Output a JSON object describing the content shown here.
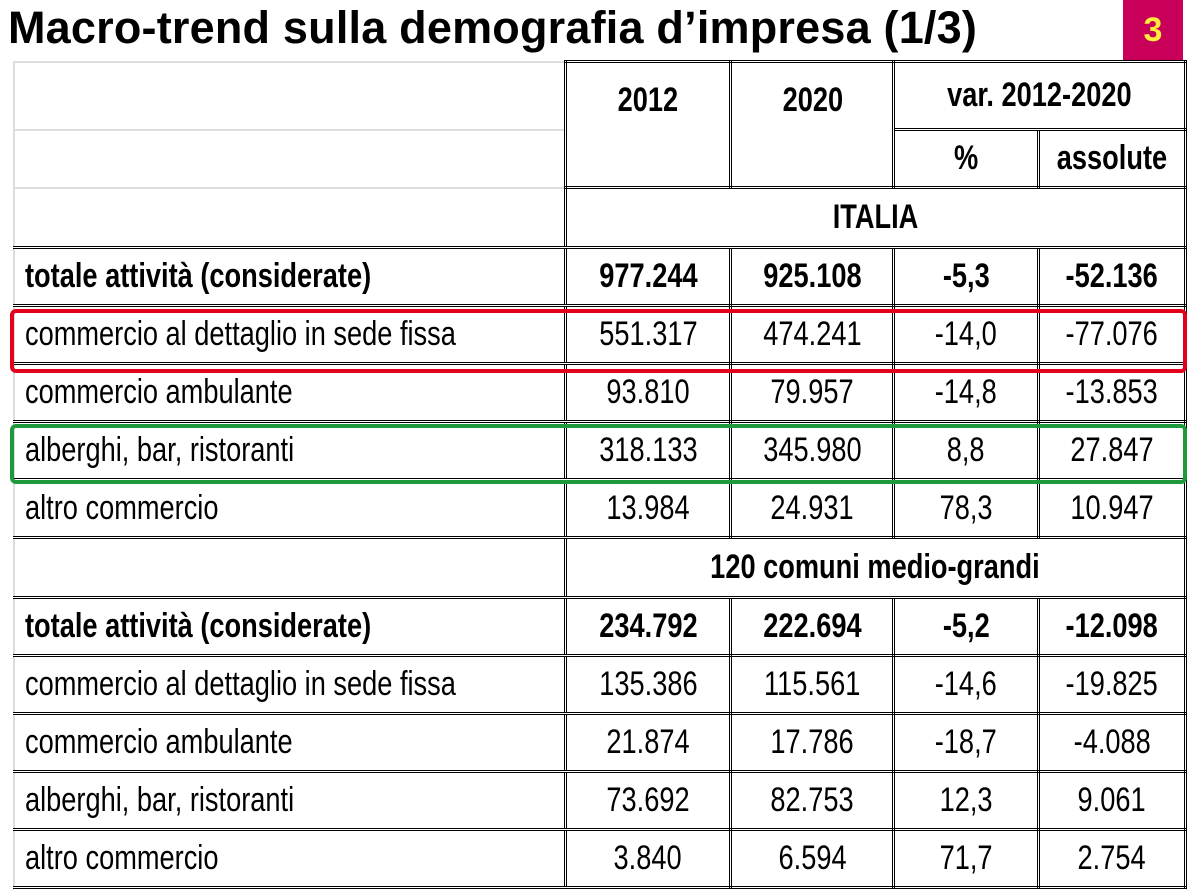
{
  "title": "Macro-trend sulla demografia d’impresa (1/3)",
  "page_badge": "3",
  "colors": {
    "badge_bg": "#c8005a",
    "badge_text": "#ffeb3b",
    "highlight_red": "#e3001b",
    "highlight_green": "#1e9a3c"
  },
  "headers": {
    "y2012": "2012",
    "y2020": "2020",
    "var": "var. 2012-2020",
    "pct": "%",
    "abs": "assolute"
  },
  "sections": [
    {
      "name": "ITALIA",
      "rows": [
        {
          "label": "totale attività (considerate)",
          "v2012": "977.244",
          "v2020": "925.108",
          "pct": "-5,3",
          "abs": "-52.136",
          "bold": true
        },
        {
          "label": "commercio al dettaglio in sede fissa",
          "v2012": "551.317",
          "v2020": "474.241",
          "pct": "-14,0",
          "abs": "-77.076",
          "highlight": "red"
        },
        {
          "label": "commercio ambulante",
          "v2012": "93.810",
          "v2020": "79.957",
          "pct": "-14,8",
          "abs": "-13.853"
        },
        {
          "label": "alberghi, bar, ristoranti",
          "v2012": "318.133",
          "v2020": "345.980",
          "pct": "8,8",
          "abs": "27.847",
          "highlight": "green"
        },
        {
          "label": "altro commercio",
          "v2012": "13.984",
          "v2020": "24.931",
          "pct": "78,3",
          "abs": "10.947"
        }
      ]
    },
    {
      "name": "120 comuni medio-grandi",
      "rows": [
        {
          "label": "totale attività (considerate)",
          "v2012": "234.792",
          "v2020": "222.694",
          "pct": "-5,2",
          "abs": "-12.098",
          "bold": true
        },
        {
          "label": "commercio al dettaglio in sede fissa",
          "v2012": "135.386",
          "v2020": "115.561",
          "pct": "-14,6",
          "abs": "-19.825"
        },
        {
          "label": "commercio ambulante",
          "v2012": "21.874",
          "v2020": "17.786",
          "pct": "-18,7",
          "abs": "-4.088"
        },
        {
          "label": "alberghi, bar, ristoranti",
          "v2012": "73.692",
          "v2020": "82.753",
          "pct": "12,3",
          "abs": "9.061"
        },
        {
          "label": "altro commercio",
          "v2012": "3.840",
          "v2020": "6.594",
          "pct": "71,7",
          "abs": "2.754"
        }
      ]
    }
  ]
}
